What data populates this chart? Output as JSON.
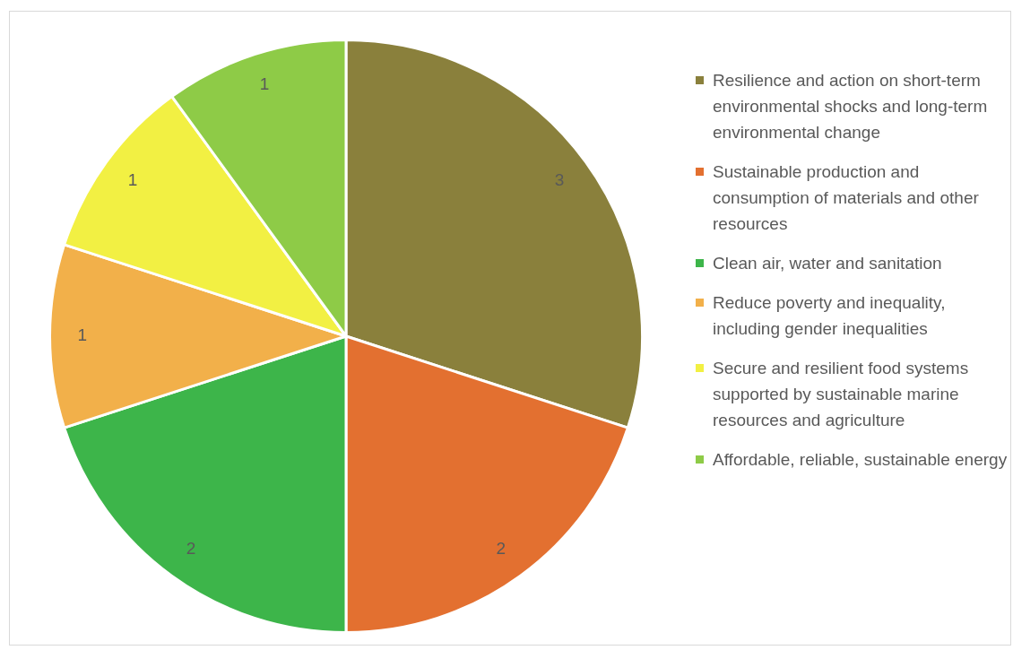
{
  "chart_data": {
    "type": "pie",
    "categories": [
      "Resilience and action on short-term environmental shocks and long-term environmental change",
      "Sustainable production and consumption of materials and other resources",
      "Clean air, water and sanitation",
      "Reduce poverty and inequality, including gender inequalities",
      "Secure and resilient food systems supported by sustainable marine resources and agriculture",
      "Affordable, reliable, sustainable energy"
    ],
    "values": [
      3,
      2,
      2,
      1,
      1,
      1
    ],
    "colors": [
      "#8a803c",
      "#e37030",
      "#3db54a",
      "#f2b04a",
      "#f2f043",
      "#8ecb47"
    ],
    "data_labels": true,
    "legend": "right"
  }
}
